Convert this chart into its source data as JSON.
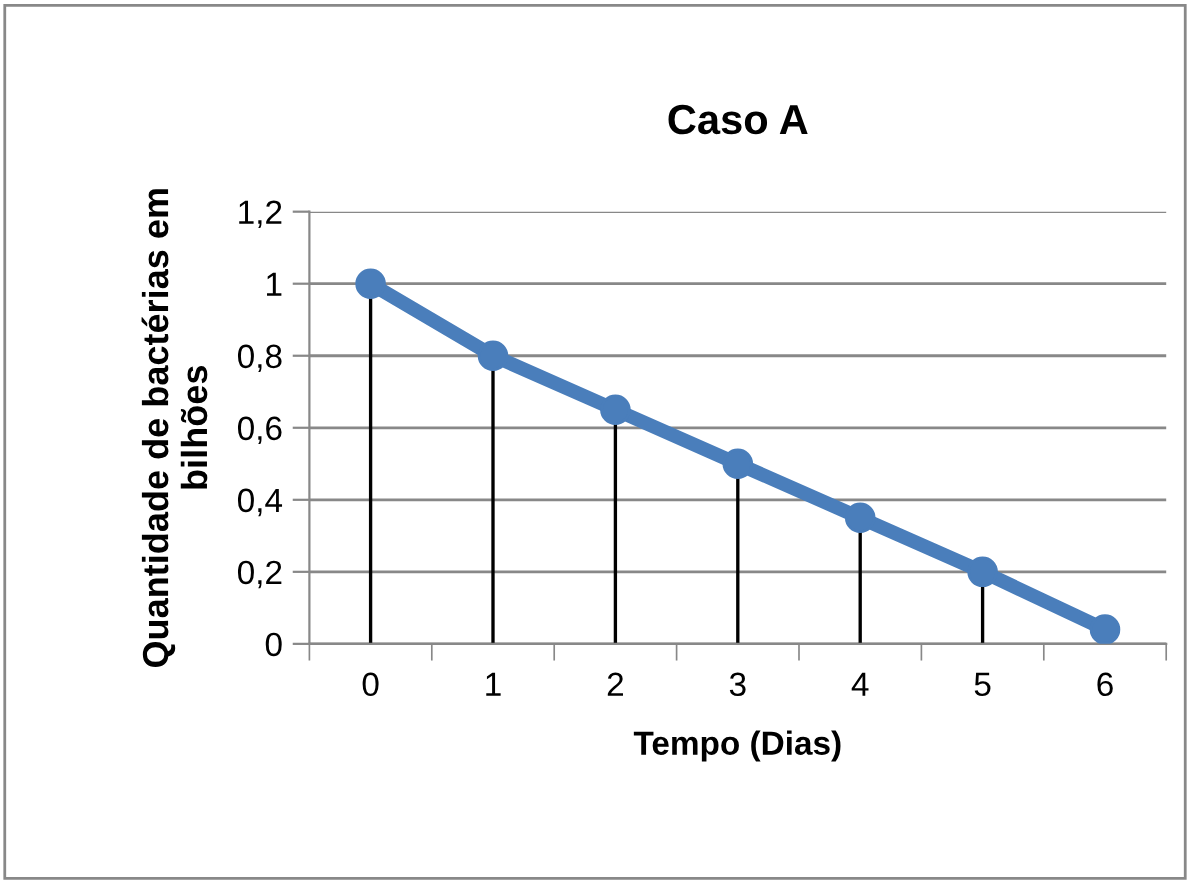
{
  "chart_data": {
    "type": "line",
    "title": "Caso A",
    "xlabel": "Tempo (Dias)",
    "ylabel": "Quantidade de bactérias em\nbilhões",
    "categories": [
      "0",
      "1",
      "2",
      "3",
      "4",
      "5",
      "6"
    ],
    "series": [
      {
        "color": "#4a7ebb",
        "values": [
          1,
          0.8,
          0.65,
          0.5,
          0.35,
          0.2,
          0.04
        ],
        "errors": [
          [
            0,
            1
          ],
          [
            0,
            0.8
          ],
          [
            0,
            0.65
          ],
          [
            0,
            0.5
          ],
          [
            0,
            0.35
          ],
          [
            0,
            0.2
          ],
          [
            0,
            0.04
          ]
        ]
      }
    ],
    "ylim": [
      0,
      1.2
    ],
    "yticks": [
      0,
      {
        "value": 0.2,
        "label": "0,2"
      },
      {
        "value": 0.4,
        "label": "0,4"
      },
      {
        "value": 0.6,
        "label": "0,6"
      },
      {
        "value": 0.8,
        "label": "0,8"
      },
      1,
      {
        "value": 1.2,
        "label": "1,2"
      }
    ],
    "grid": "y",
    "marker": "circle",
    "line_style": "solid",
    "legend": false
  }
}
